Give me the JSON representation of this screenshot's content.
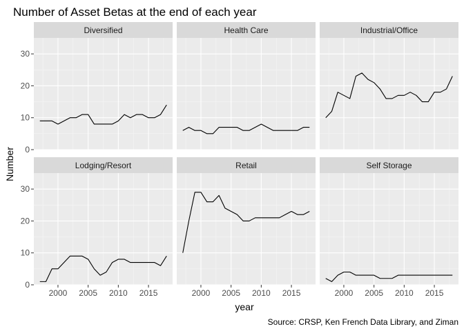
{
  "chart_data": {
    "type": "line",
    "title": "Number of Asset Betas at the end of each year",
    "xlabel": "year",
    "ylabel": "Number",
    "caption": "Source: CRSP, Ken French Data Library, and Ziman",
    "x": [
      1997,
      1998,
      1999,
      2000,
      2001,
      2002,
      2003,
      2004,
      2005,
      2006,
      2007,
      2008,
      2009,
      2010,
      2011,
      2012,
      2013,
      2014,
      2015,
      2016,
      2017,
      2018
    ],
    "xlim": [
      1996,
      2019
    ],
    "ylim": [
      0,
      35
    ],
    "x_ticks": [
      2000,
      2005,
      2010,
      2015
    ],
    "y_ticks": [
      0,
      10,
      20,
      30
    ],
    "grid": true,
    "facets": [
      {
        "name": "Diversified",
        "values": [
          9,
          9,
          9,
          8,
          9,
          10,
          10,
          11,
          11,
          8,
          8,
          8,
          8,
          9,
          11,
          10,
          11,
          11,
          10,
          10,
          11,
          14
        ]
      },
      {
        "name": "Health Care",
        "values": [
          6,
          7,
          6,
          6,
          5,
          5,
          7,
          7,
          7,
          7,
          6,
          6,
          7,
          8,
          7,
          6,
          6,
          6,
          6,
          6,
          7,
          7
        ]
      },
      {
        "name": "Industrial/Office",
        "values": [
          10,
          12,
          18,
          17,
          16,
          23,
          24,
          22,
          21,
          19,
          16,
          16,
          17,
          17,
          18,
          17,
          15,
          15,
          18,
          18,
          19,
          23
        ]
      },
      {
        "name": "Lodging/Resort",
        "values": [
          1,
          1,
          5,
          5,
          7,
          9,
          9,
          9,
          8,
          5,
          3,
          4,
          7,
          8,
          8,
          7,
          7,
          7,
          7,
          7,
          6,
          9
        ]
      },
      {
        "name": "Retail",
        "values": [
          10,
          20,
          29,
          29,
          26,
          26,
          28,
          24,
          23,
          22,
          20,
          20,
          21,
          21,
          21,
          21,
          21,
          22,
          23,
          22,
          22,
          23
        ]
      },
      {
        "name": "Self Storage",
        "values": [
          2,
          1,
          3,
          4,
          4,
          3,
          3,
          3,
          3,
          2,
          2,
          2,
          3,
          3,
          3,
          3,
          3,
          3,
          3,
          3,
          3,
          3
        ]
      }
    ]
  }
}
